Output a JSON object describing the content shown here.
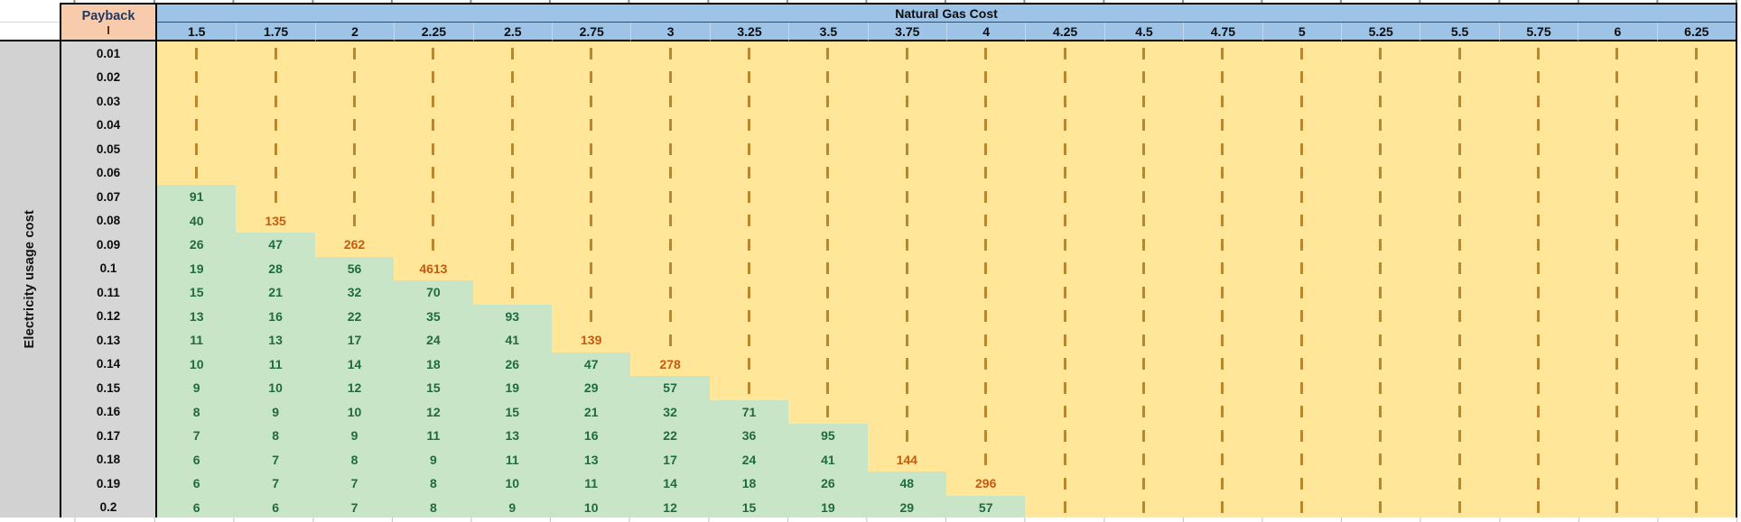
{
  "worksheet": {
    "corner": {
      "title": "Payback",
      "unit": "I"
    },
    "column_group_label": "Natural Gas Cost",
    "row_axis_label": "Electricity usage cost",
    "infinite_symbol": "I",
    "columns": [
      "1.5",
      "1.75",
      "2",
      "2.25",
      "2.5",
      "2.75",
      "3",
      "3.25",
      "3.5",
      "3.75",
      "4",
      "4.25",
      "4.5",
      "4.75",
      "5",
      "5.25",
      "5.5",
      "5.75",
      "6",
      "6.25"
    ],
    "rows": [
      {
        "label": "0.01",
        "values": [
          "I",
          "I",
          "I",
          "I",
          "I",
          "I",
          "I",
          "I",
          "I",
          "I",
          "I",
          "I",
          "I",
          "I",
          "I",
          "I",
          "I",
          "I",
          "I",
          "I"
        ]
      },
      {
        "label": "0.02",
        "values": [
          "I",
          "I",
          "I",
          "I",
          "I",
          "I",
          "I",
          "I",
          "I",
          "I",
          "I",
          "I",
          "I",
          "I",
          "I",
          "I",
          "I",
          "I",
          "I",
          "I"
        ]
      },
      {
        "label": "0.03",
        "values": [
          "I",
          "I",
          "I",
          "I",
          "I",
          "I",
          "I",
          "I",
          "I",
          "I",
          "I",
          "I",
          "I",
          "I",
          "I",
          "I",
          "I",
          "I",
          "I",
          "I"
        ]
      },
      {
        "label": "0.04",
        "values": [
          "I",
          "I",
          "I",
          "I",
          "I",
          "I",
          "I",
          "I",
          "I",
          "I",
          "I",
          "I",
          "I",
          "I",
          "I",
          "I",
          "I",
          "I",
          "I",
          "I"
        ]
      },
      {
        "label": "0.05",
        "values": [
          "I",
          "I",
          "I",
          "I",
          "I",
          "I",
          "I",
          "I",
          "I",
          "I",
          "I",
          "I",
          "I",
          "I",
          "I",
          "I",
          "I",
          "I",
          "I",
          "I"
        ]
      },
      {
        "label": "0.06",
        "values": [
          "I",
          "I",
          "I",
          "I",
          "I",
          "I",
          "I",
          "I",
          "I",
          "I",
          "I",
          "I",
          "I",
          "I",
          "I",
          "I",
          "I",
          "I",
          "I",
          "I"
        ]
      },
      {
        "label": "0.07",
        "values": [
          91,
          "I",
          "I",
          "I",
          "I",
          "I",
          "I",
          "I",
          "I",
          "I",
          "I",
          "I",
          "I",
          "I",
          "I",
          "I",
          "I",
          "I",
          "I",
          "I"
        ]
      },
      {
        "label": "0.08",
        "values": [
          40,
          135,
          "I",
          "I",
          "I",
          "I",
          "I",
          "I",
          "I",
          "I",
          "I",
          "I",
          "I",
          "I",
          "I",
          "I",
          "I",
          "I",
          "I",
          "I"
        ]
      },
      {
        "label": "0.09",
        "values": [
          26,
          47,
          262,
          "I",
          "I",
          "I",
          "I",
          "I",
          "I",
          "I",
          "I",
          "I",
          "I",
          "I",
          "I",
          "I",
          "I",
          "I",
          "I",
          "I"
        ]
      },
      {
        "label": "0.1",
        "values": [
          19,
          28,
          56,
          4613,
          "I",
          "I",
          "I",
          "I",
          "I",
          "I",
          "I",
          "I",
          "I",
          "I",
          "I",
          "I",
          "I",
          "I",
          "I",
          "I"
        ]
      },
      {
        "label": "0.11",
        "values": [
          15,
          21,
          32,
          70,
          "I",
          "I",
          "I",
          "I",
          "I",
          "I",
          "I",
          "I",
          "I",
          "I",
          "I",
          "I",
          "I",
          "I",
          "I",
          "I"
        ]
      },
      {
        "label": "0.12",
        "values": [
          13,
          16,
          22,
          35,
          93,
          "I",
          "I",
          "I",
          "I",
          "I",
          "I",
          "I",
          "I",
          "I",
          "I",
          "I",
          "I",
          "I",
          "I",
          "I"
        ]
      },
      {
        "label": "0.13",
        "values": [
          11,
          13,
          17,
          24,
          41,
          139,
          "I",
          "I",
          "I",
          "I",
          "I",
          "I",
          "I",
          "I",
          "I",
          "I",
          "I",
          "I",
          "I",
          "I"
        ]
      },
      {
        "label": "0.14",
        "values": [
          10,
          11,
          14,
          18,
          26,
          47,
          278,
          "I",
          "I",
          "I",
          "I",
          "I",
          "I",
          "I",
          "I",
          "I",
          "I",
          "I",
          "I",
          "I"
        ]
      },
      {
        "label": "0.15",
        "values": [
          9,
          10,
          12,
          15,
          19,
          29,
          57,
          "I",
          "I",
          "I",
          "I",
          "I",
          "I",
          "I",
          "I",
          "I",
          "I",
          "I",
          "I",
          "I"
        ]
      },
      {
        "label": "0.16",
        "values": [
          8,
          9,
          10,
          12,
          15,
          21,
          32,
          71,
          "I",
          "I",
          "I",
          "I",
          "I",
          "I",
          "I",
          "I",
          "I",
          "I",
          "I",
          "I"
        ]
      },
      {
        "label": "0.17",
        "values": [
          7,
          8,
          9,
          11,
          13,
          16,
          22,
          36,
          95,
          "I",
          "I",
          "I",
          "I",
          "I",
          "I",
          "I",
          "I",
          "I",
          "I",
          "I"
        ]
      },
      {
        "label": "0.18",
        "values": [
          6,
          7,
          8,
          9,
          11,
          13,
          17,
          24,
          41,
          144,
          "I",
          "I",
          "I",
          "I",
          "I",
          "I",
          "I",
          "I",
          "I",
          "I"
        ]
      },
      {
        "label": "0.19",
        "values": [
          6,
          7,
          7,
          8,
          10,
          11,
          14,
          18,
          26,
          48,
          296,
          "I",
          "I",
          "I",
          "I",
          "I",
          "I",
          "I",
          "I",
          "I"
        ]
      },
      {
        "label": "0.2",
        "values": [
          6,
          6,
          7,
          8,
          9,
          10,
          12,
          15,
          19,
          29,
          57,
          "I",
          "I",
          "I",
          "I",
          "I",
          "I",
          "I",
          "I",
          "I"
        ]
      }
    ],
    "colors": {
      "header_blue": "#9DC3E6",
      "corner_peach": "#F8CBAD",
      "rowlabel_gray": "#D6D6D6",
      "field_gold": "#FFE699",
      "good_green": "#C9E5C8",
      "good_text": "#1F6B3C",
      "hot_text": "#C55A11",
      "dash_brown": "#B9862C"
    },
    "green_threshold": 100
  }
}
